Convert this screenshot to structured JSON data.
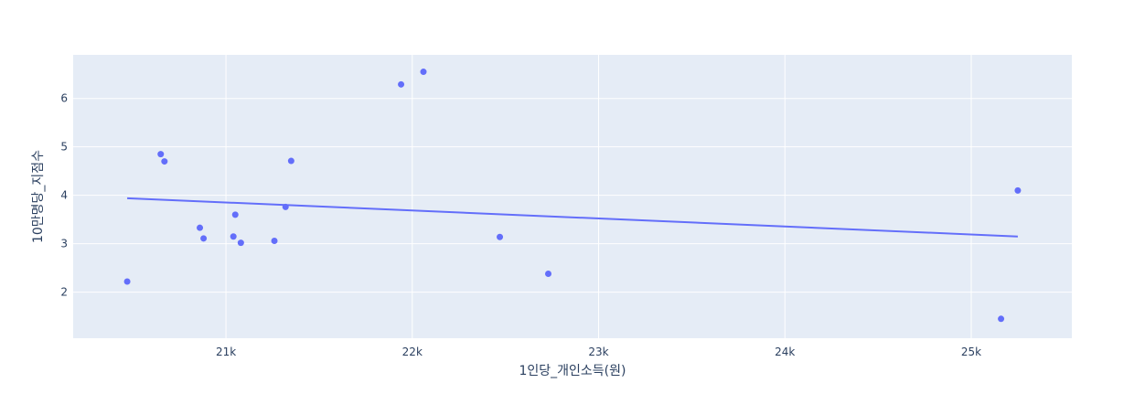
{
  "chart_data": {
    "type": "scatter",
    "title": "",
    "xlabel": "1인당_개인소득(원)",
    "ylabel": "10만명당_지점수",
    "xlim": [
      20180,
      25540
    ],
    "ylim": [
      1.05,
      6.9
    ],
    "x_ticks": [
      {
        "value": 21000,
        "label": "21k"
      },
      {
        "value": 22000,
        "label": "22k"
      },
      {
        "value": 23000,
        "label": "23k"
      },
      {
        "value": 24000,
        "label": "24k"
      },
      {
        "value": 25000,
        "label": "25k"
      }
    ],
    "y_ticks": [
      {
        "value": 2,
        "label": "2"
      },
      {
        "value": 3,
        "label": "3"
      },
      {
        "value": 4,
        "label": "4"
      },
      {
        "value": 5,
        "label": "5"
      },
      {
        "value": 6,
        "label": "6"
      }
    ],
    "grid": true,
    "background_color": "#e5ecf6",
    "grid_color": "#ffffff",
    "marker_color": "#636efa",
    "series": [
      {
        "points": [
          {
            "x": 20470,
            "y": 2.22
          },
          {
            "x": 20650,
            "y": 4.85
          },
          {
            "x": 20670,
            "y": 4.7
          },
          {
            "x": 20860,
            "y": 3.33
          },
          {
            "x": 20880,
            "y": 3.11
          },
          {
            "x": 21040,
            "y": 3.15
          },
          {
            "x": 21050,
            "y": 3.6
          },
          {
            "x": 21080,
            "y": 3.02
          },
          {
            "x": 21260,
            "y": 3.06
          },
          {
            "x": 21320,
            "y": 3.76
          },
          {
            "x": 21350,
            "y": 4.71
          },
          {
            "x": 21940,
            "y": 6.29
          },
          {
            "x": 22060,
            "y": 6.55
          },
          {
            "x": 22470,
            "y": 3.14
          },
          {
            "x": 22730,
            "y": 2.38
          },
          {
            "x": 25160,
            "y": 1.45
          },
          {
            "x": 25250,
            "y": 4.1
          }
        ]
      }
    ],
    "trendline": {
      "x": [
        20470,
        25250
      ],
      "y": [
        3.94,
        3.15
      ]
    }
  }
}
